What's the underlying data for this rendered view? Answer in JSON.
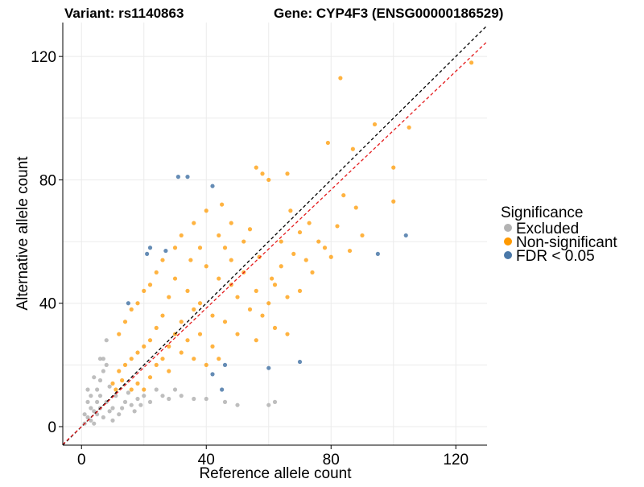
{
  "chart_data": {
    "type": "scatter",
    "title_variant": "Variant: rs1140863",
    "title_gene": "Gene: CYP4F3 (ENSG00000186529)",
    "xlabel": "Reference allele count",
    "ylabel": "Alternative allele count",
    "xlim": [
      -6,
      130
    ],
    "ylim": [
      -6,
      131
    ],
    "x_ticks": [
      0,
      40,
      80,
      120
    ],
    "y_ticks": [
      0,
      40,
      80,
      120
    ],
    "grid": true,
    "reference_lines": [
      {
        "name": "identity",
        "style": "dashed",
        "color": "#000000",
        "slope": 1.0,
        "intercept": 0
      },
      {
        "name": "fit",
        "style": "dashed",
        "color": "#e41a1c",
        "slope": 0.96,
        "intercept": 0
      }
    ],
    "legend": {
      "title": "Significance",
      "position": "right",
      "entries": [
        {
          "label": "Excluded",
          "color": "#b3b3b3"
        },
        {
          "label": "Non-significant",
          "color": "#ff9900"
        },
        {
          "label": "FDR < 0.05",
          "color": "#4a78a8"
        }
      ]
    },
    "series": [
      {
        "name": "FDR < 0.05",
        "color": "#4a78a8",
        "points": [
          [
            31,
            81
          ],
          [
            34,
            81
          ],
          [
            42,
            78
          ],
          [
            22,
            58
          ],
          [
            21,
            56
          ],
          [
            27,
            57
          ],
          [
            15,
            40
          ],
          [
            104,
            62
          ],
          [
            95,
            56
          ],
          [
            42,
            17
          ],
          [
            46,
            20
          ],
          [
            45,
            12
          ],
          [
            60,
            19
          ],
          [
            70,
            21
          ]
        ]
      },
      {
        "name": "Non-significant",
        "color": "#ff9900",
        "points": [
          [
            125,
            118
          ],
          [
            83,
            113
          ],
          [
            94,
            98
          ],
          [
            105,
            97
          ],
          [
            79,
            92
          ],
          [
            87,
            90
          ],
          [
            100,
            84
          ],
          [
            66,
            82
          ],
          [
            56,
            84
          ],
          [
            58,
            82
          ],
          [
            60,
            80
          ],
          [
            100,
            73
          ],
          [
            84,
            75
          ],
          [
            88,
            71
          ],
          [
            82,
            65
          ],
          [
            73,
            66
          ],
          [
            67,
            70
          ],
          [
            70,
            63
          ],
          [
            76,
            60
          ],
          [
            78,
            58
          ],
          [
            86,
            57
          ],
          [
            90,
            62
          ],
          [
            80,
            55
          ],
          [
            74,
            50
          ],
          [
            64,
            52
          ],
          [
            61,
            48
          ],
          [
            57,
            55
          ],
          [
            52,
            60
          ],
          [
            48,
            66
          ],
          [
            45,
            72
          ],
          [
            40,
            70
          ],
          [
            36,
            66
          ],
          [
            32,
            62
          ],
          [
            30,
            58
          ],
          [
            26,
            54
          ],
          [
            24,
            50
          ],
          [
            22,
            46
          ],
          [
            20,
            44
          ],
          [
            18,
            40
          ],
          [
            16,
            38
          ],
          [
            14,
            34
          ],
          [
            12,
            30
          ],
          [
            50,
            42
          ],
          [
            54,
            38
          ],
          [
            58,
            36
          ],
          [
            62,
            32
          ],
          [
            66,
            30
          ],
          [
            56,
            28
          ],
          [
            50,
            30
          ],
          [
            46,
            34
          ],
          [
            42,
            36
          ],
          [
            38,
            40
          ],
          [
            34,
            44
          ],
          [
            30,
            48
          ],
          [
            28,
            42
          ],
          [
            26,
            36
          ],
          [
            24,
            32
          ],
          [
            22,
            28
          ],
          [
            20,
            26
          ],
          [
            18,
            24
          ],
          [
            16,
            22
          ],
          [
            14,
            20
          ],
          [
            12,
            18
          ],
          [
            10,
            14
          ],
          [
            11,
            12
          ],
          [
            13,
            15
          ],
          [
            40,
            52
          ],
          [
            44,
            48
          ],
          [
            48,
            46
          ],
          [
            52,
            50
          ],
          [
            56,
            44
          ],
          [
            60,
            40
          ],
          [
            36,
            38
          ],
          [
            32,
            34
          ],
          [
            30,
            30
          ],
          [
            28,
            26
          ],
          [
            34,
            28
          ],
          [
            38,
            30
          ],
          [
            42,
            26
          ],
          [
            44,
            22
          ],
          [
            40,
            20
          ],
          [
            36,
            22
          ],
          [
            32,
            24
          ],
          [
            26,
            22
          ],
          [
            24,
            20
          ],
          [
            28,
            18
          ],
          [
            22,
            16
          ],
          [
            18,
            14
          ],
          [
            20,
            12
          ],
          [
            16,
            12
          ],
          [
            64,
            60
          ],
          [
            68,
            56
          ],
          [
            72,
            54
          ],
          [
            62,
            46
          ],
          [
            66,
            42
          ],
          [
            70,
            44
          ],
          [
            54,
            64
          ],
          [
            46,
            58
          ],
          [
            44,
            62
          ],
          [
            38,
            58
          ],
          [
            35,
            54
          ],
          [
            48,
            54
          ]
        ]
      },
      {
        "name": "Excluded",
        "color": "#b3b3b3",
        "points": [
          [
            1,
            1
          ],
          [
            2,
            3
          ],
          [
            3,
            2
          ],
          [
            4,
            5
          ],
          [
            5,
            4
          ],
          [
            6,
            6
          ],
          [
            7,
            3
          ],
          [
            8,
            8
          ],
          [
            9,
            5
          ],
          [
            2,
            8
          ],
          [
            3,
            10
          ],
          [
            5,
            12
          ],
          [
            6,
            15
          ],
          [
            7,
            18
          ],
          [
            4,
            16
          ],
          [
            8,
            20
          ],
          [
            6,
            22
          ],
          [
            10,
            6
          ],
          [
            12,
            4
          ],
          [
            14,
            8
          ],
          [
            16,
            7
          ],
          [
            18,
            9
          ],
          [
            20,
            10
          ],
          [
            22,
            8
          ],
          [
            24,
            12
          ],
          [
            26,
            10
          ],
          [
            28,
            9
          ],
          [
            30,
            12
          ],
          [
            32,
            10
          ],
          [
            36,
            9
          ],
          [
            40,
            9
          ],
          [
            46,
            8
          ],
          [
            50,
            7
          ],
          [
            60,
            7
          ],
          [
            62,
            8
          ],
          [
            8,
            28
          ],
          [
            7,
            22
          ],
          [
            5,
            8
          ],
          [
            9,
            13
          ],
          [
            11,
            10
          ],
          [
            13,
            6
          ],
          [
            15,
            11
          ],
          [
            17,
            5
          ],
          [
            19,
            7
          ],
          [
            3,
            6
          ],
          [
            1,
            4
          ],
          [
            4,
            1
          ],
          [
            6,
            10
          ],
          [
            2,
            12
          ],
          [
            10,
            2
          ]
        ]
      }
    ]
  }
}
